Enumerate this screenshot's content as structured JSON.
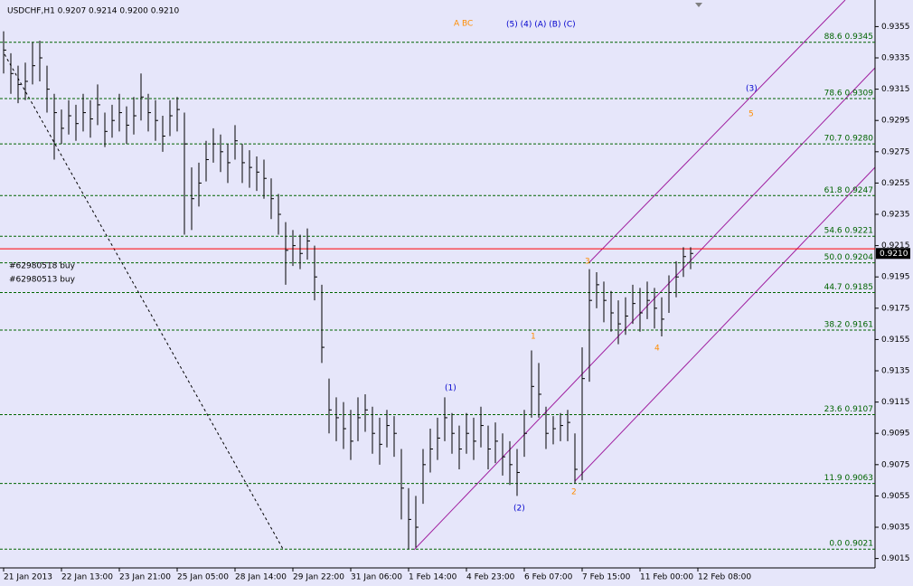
{
  "chart_data": {
    "type": "ohlc",
    "title": "USDCHF,H1  0.9207 0.9214 0.9200 0.9210",
    "color": "#000000",
    "background": "#e6e6fa",
    "ylim": [
      0.9009,
      0.9372
    ],
    "yticks": [
      0.9355,
      0.9335,
      0.9315,
      0.9295,
      0.9275,
      0.9255,
      0.9235,
      0.9215,
      0.9195,
      0.9175,
      0.9155,
      0.9135,
      0.9115,
      0.9095,
      0.9075,
      0.9055,
      0.9035,
      0.9015
    ],
    "x_labels": [
      "21 Jan 2013",
      "22 Jan 13:00",
      "23 Jan 21:00",
      "25 Jan 05:00",
      "28 Jan 14:00",
      "29 Jan 22:00",
      "31 Jan 06:00",
      "1 Feb 14:00",
      "4 Feb 23:00",
      "6 Feb 07:00",
      "7 Feb 15:00",
      "11 Feb 00:00",
      "12 Feb 08:00"
    ],
    "high": [
      0.9352,
      0.9338,
      0.933,
      0.9332,
      0.9345,
      0.9346,
      0.933,
      0.9312,
      0.9302,
      0.9308,
      0.9305,
      0.9312,
      0.9308,
      0.9318,
      0.93,
      0.9305,
      0.9312,
      0.9304,
      0.931,
      0.9325,
      0.9312,
      0.9308,
      0.9298,
      0.9308,
      0.931,
      0.93,
      0.9265,
      0.9268,
      0.9282,
      0.929,
      0.9286,
      0.928,
      0.9292,
      0.928,
      0.9276,
      0.9272,
      0.927,
      0.9258,
      0.9248,
      0.923,
      0.9225,
      0.9222,
      0.9226,
      0.9215,
      0.919,
      0.913,
      0.9118,
      0.9115,
      0.911,
      0.9118,
      0.912,
      0.9112,
      0.9105,
      0.911,
      0.9106,
      0.9085,
      0.906,
      0.9055,
      0.9085,
      0.9098,
      0.9105,
      0.9118,
      0.9108,
      0.91,
      0.9108,
      0.9105,
      0.9112,
      0.91,
      0.9102,
      0.9095,
      0.909,
      0.9085,
      0.911,
      0.9148,
      0.914,
      0.9112,
      0.9106,
      0.9108,
      0.911,
      0.9095,
      0.915,
      0.92,
      0.9198,
      0.9192,
      0.9186,
      0.918,
      0.9182,
      0.919,
      0.9188,
      0.9192,
      0.9188,
      0.9182,
      0.9196,
      0.9205,
      0.9214,
      0.9214
    ],
    "low": [
      0.9325,
      0.9312,
      0.9306,
      0.9308,
      0.9318,
      0.932,
      0.93,
      0.927,
      0.928,
      0.9286,
      0.9282,
      0.9288,
      0.9284,
      0.9292,
      0.9278,
      0.9284,
      0.9288,
      0.928,
      0.9286,
      0.9295,
      0.9288,
      0.9282,
      0.9275,
      0.9285,
      0.9288,
      0.9222,
      0.9225,
      0.924,
      0.9256,
      0.9268,
      0.9262,
      0.9255,
      0.927,
      0.9255,
      0.9252,
      0.925,
      0.9245,
      0.9232,
      0.9222,
      0.919,
      0.9202,
      0.92,
      0.9206,
      0.918,
      0.914,
      0.9095,
      0.909,
      0.9085,
      0.9078,
      0.909,
      0.9096,
      0.9082,
      0.9075,
      0.9086,
      0.908,
      0.904,
      0.9021,
      0.9022,
      0.905,
      0.907,
      0.9078,
      0.909,
      0.9082,
      0.9072,
      0.9082,
      0.9078,
      0.9086,
      0.9072,
      0.9076,
      0.9068,
      0.9062,
      0.9055,
      0.908,
      0.9105,
      0.9105,
      0.9085,
      0.9088,
      0.909,
      0.909,
      0.9063,
      0.9065,
      0.9128,
      0.9175,
      0.9166,
      0.916,
      0.9152,
      0.9158,
      0.9165,
      0.916,
      0.9168,
      0.9162,
      0.9157,
      0.9172,
      0.9182,
      0.9195,
      0.92
    ],
    "close": [
      0.934,
      0.9325,
      0.9318,
      0.932,
      0.933,
      0.9335,
      0.9315,
      0.93,
      0.929,
      0.9298,
      0.9293,
      0.93,
      0.9296,
      0.9305,
      0.9288,
      0.9295,
      0.93,
      0.9292,
      0.9298,
      0.931,
      0.93,
      0.9295,
      0.9285,
      0.9298,
      0.9302,
      0.928,
      0.9245,
      0.9255,
      0.927,
      0.928,
      0.9275,
      0.9268,
      0.9282,
      0.9268,
      0.9265,
      0.9262,
      0.9258,
      0.9245,
      0.9235,
      0.9212,
      0.9215,
      0.921,
      0.9218,
      0.9195,
      0.915,
      0.911,
      0.9105,
      0.9098,
      0.909,
      0.9105,
      0.911,
      0.9095,
      0.9088,
      0.91,
      0.9095,
      0.906,
      0.904,
      0.9035,
      0.9075,
      0.9085,
      0.9092,
      0.9105,
      0.9095,
      0.9085,
      0.9095,
      0.909,
      0.91,
      0.9085,
      0.909,
      0.908,
      0.9075,
      0.907,
      0.9095,
      0.9125,
      0.912,
      0.9095,
      0.9098,
      0.91,
      0.9102,
      0.9072,
      0.913,
      0.918,
      0.919,
      0.918,
      0.9172,
      0.9165,
      0.917,
      0.9178,
      0.9172,
      0.918,
      0.9175,
      0.9168,
      0.9185,
      0.9195,
      0.9208,
      0.921
    ],
    "fib_color": "#006400",
    "fib_levels": [
      {
        "value": 0.9345,
        "label": "88.6 0.9345"
      },
      {
        "value": 0.9309,
        "label": "78.6 0.9309"
      },
      {
        "value": 0.928,
        "label": "70.7 0.9280"
      },
      {
        "value": 0.9247,
        "label": "61.8 0.9247"
      },
      {
        "value": 0.9221,
        "label": "54.6 0.9221"
      },
      {
        "value": 0.9204,
        "label": "50.0 0.9204"
      },
      {
        "value": 0.9185,
        "label": "44.7 0.9185"
      },
      {
        "value": 0.9161,
        "label": "38.2 0.9161"
      },
      {
        "value": 0.9107,
        "label": "23.6 0.9107"
      },
      {
        "value": 0.9063,
        "label": "11.9 0.9063"
      },
      {
        "value": 0.9021,
        "label": "0.0 0.9021"
      }
    ],
    "order_line": {
      "value": 0.9213,
      "color": "#ff0000"
    },
    "current_price": {
      "value": 0.921,
      "label": "0.9210"
    },
    "orders": [
      "#62980518 buy",
      "#62980513 buy"
    ],
    "annotations": [
      {
        "text": "A BC",
        "color": "#ff8c00"
      },
      {
        "text": "(5)  (4)  (A)  (B)  (C)",
        "color": "#0000cd"
      },
      {
        "text": "(1)",
        "color": "#0000cd"
      },
      {
        "text": "(2)",
        "color": "#0000cd"
      },
      {
        "text": "(3)",
        "color": "#0000cd"
      },
      {
        "text": "1",
        "color": "#ff8c00"
      },
      {
        "text": "2",
        "color": "#ff8c00"
      },
      {
        "text": "3",
        "color": "#ff8c00"
      },
      {
        "text": "4",
        "color": "#ff8c00"
      },
      {
        "text": "5",
        "color": "#ff8c00"
      }
    ]
  }
}
